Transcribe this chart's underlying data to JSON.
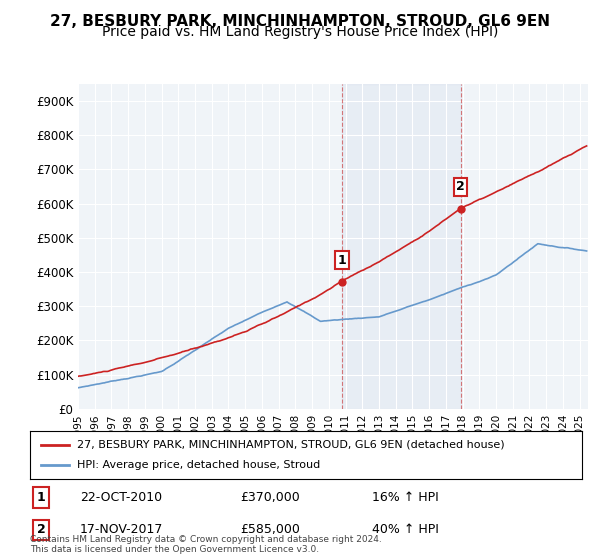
{
  "title": "27, BESBURY PARK, MINCHINHAMPTON, STROUD, GL6 9EN",
  "subtitle": "Price paid vs. HM Land Registry's House Price Index (HPI)",
  "ylabel_ticks": [
    "£0",
    "£100K",
    "£200K",
    "£300K",
    "£400K",
    "£500K",
    "£600K",
    "£700K",
    "£800K",
    "£900K"
  ],
  "ytick_values": [
    0,
    100000,
    200000,
    300000,
    400000,
    500000,
    600000,
    700000,
    800000,
    900000
  ],
  "ylim": [
    0,
    950000
  ],
  "xlim_start": 1995.0,
  "xlim_end": 2025.5,
  "hpi_color": "#6699cc",
  "price_color": "#cc2222",
  "sale1_date_label": "22-OCT-2010",
  "sale1_price": 370000,
  "sale1_pct": "16%",
  "sale1_x": 2010.8,
  "sale2_date_label": "17-NOV-2017",
  "sale2_price": 585000,
  "sale2_x": 2017.88,
  "sale2_pct": "40%",
  "legend_label_price": "27, BESBURY PARK, MINCHINHAMPTON, STROUD, GL6 9EN (detached house)",
  "legend_label_hpi": "HPI: Average price, detached house, Stroud",
  "footnote": "Contains HM Land Registry data © Crown copyright and database right 2024.\nThis data is licensed under the Open Government Licence v3.0.",
  "background_color": "#ffffff",
  "plot_bg_color": "#f0f4f8",
  "grid_color": "#ffffff",
  "title_fontsize": 11,
  "subtitle_fontsize": 10
}
